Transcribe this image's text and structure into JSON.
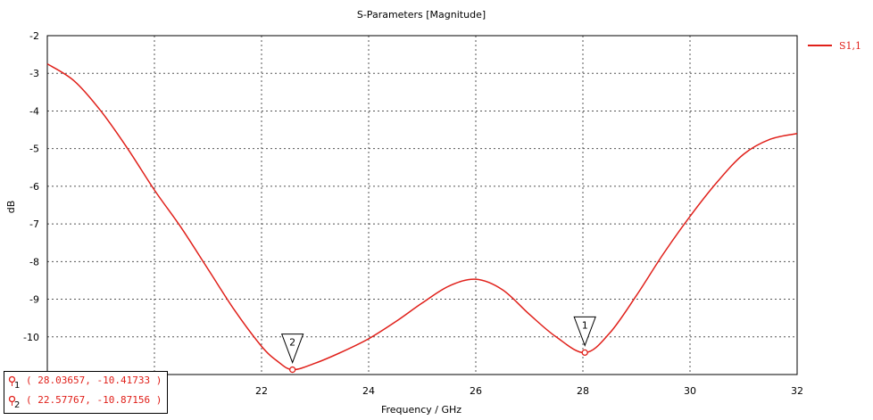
{
  "chart_data": {
    "type": "line",
    "title": "S-Parameters [Magnitude]",
    "xlabel": "Frequency / GHz",
    "ylabel": "dB",
    "xlim": [
      18,
      32
    ],
    "ylim": [
      -11,
      -2
    ],
    "x_ticks": [
      "20",
      "22",
      "24",
      "26",
      "28",
      "30",
      "32"
    ],
    "y_ticks": [
      "-2",
      "-3",
      "-4",
      "-5",
      "-6",
      "-7",
      "-8",
      "-9",
      "-10"
    ],
    "grid": true,
    "legend_position": "top-right",
    "series": [
      {
        "name": "S1,1",
        "color": "#e0201a",
        "x": [
          18,
          18.5,
          19,
          19.5,
          20,
          20.5,
          21,
          21.5,
          22,
          22.3,
          22.58,
          23,
          23.5,
          24,
          24.5,
          25,
          25.5,
          26,
          26.5,
          27,
          27.5,
          28.04,
          28.5,
          29,
          29.5,
          30,
          30.5,
          31,
          31.5,
          32
        ],
        "y": [
          -2.75,
          -3.2,
          -4.0,
          -5.0,
          -6.1,
          -7.1,
          -8.2,
          -9.3,
          -10.25,
          -10.65,
          -10.87,
          -10.7,
          -10.4,
          -10.05,
          -9.6,
          -9.1,
          -8.65,
          -8.47,
          -8.75,
          -9.4,
          -10.0,
          -10.42,
          -9.9,
          -8.9,
          -7.8,
          -6.8,
          -5.9,
          -5.15,
          -4.75,
          -4.6
        ]
      }
    ],
    "markers": [
      {
        "id": "1",
        "x": 28.03657,
        "y": -10.41733
      },
      {
        "id": "2",
        "x": 22.57767,
        "y": -10.87156
      }
    ]
  },
  "readout": {
    "rows": [
      {
        "num": "1",
        "text": "( 28.03657, -10.41733 )"
      },
      {
        "num": "2",
        "text": "( 22.57767, -10.87156 )"
      }
    ]
  }
}
